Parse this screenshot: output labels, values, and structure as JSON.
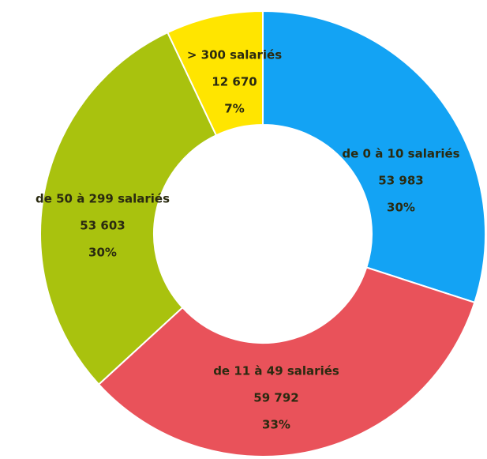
{
  "chart_data": {
    "type": "donut",
    "categories": [
      "de 0 à 10 salariés",
      "de 11 à 49 salariés",
      "de 50 à 299 salariés",
      "> 300 salariés"
    ],
    "values": [
      53983,
      59792,
      53603,
      12670
    ],
    "value_labels": [
      "53 983",
      "59 792",
      "53 603",
      "12 670"
    ],
    "percentages": [
      "30%",
      "33%",
      "30%",
      "7%"
    ],
    "colors": [
      "#13a3f4",
      "#e9525a",
      "#a9c20e",
      "#ffe500"
    ]
  }
}
